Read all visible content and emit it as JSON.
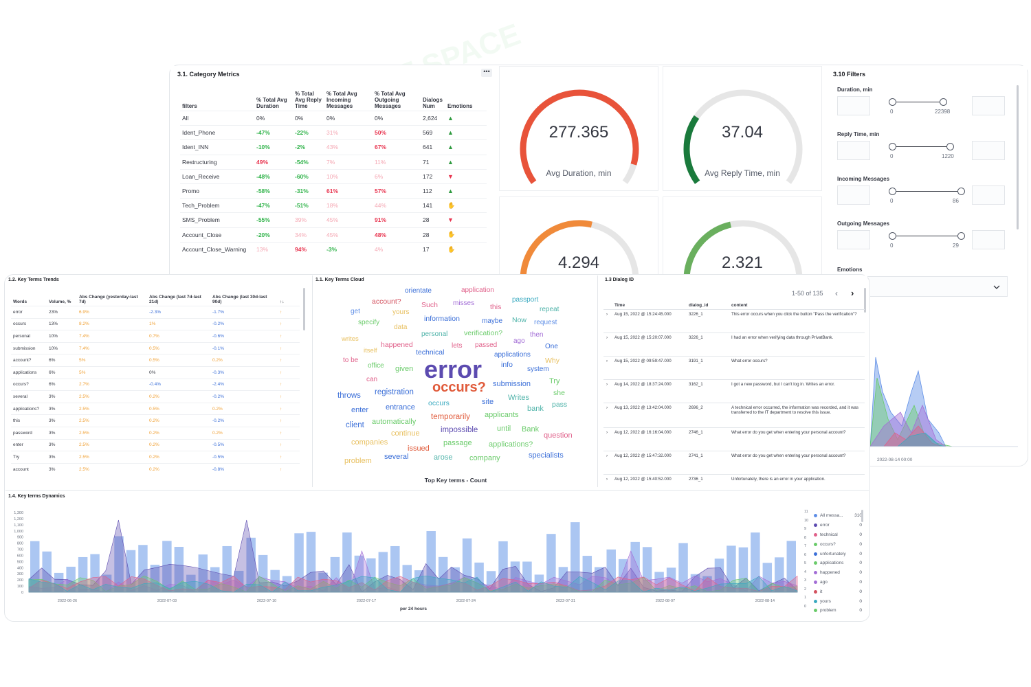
{
  "category_metrics": {
    "title": "3.1. Category Metrics",
    "menu_icon": "ellipsis-icon",
    "headers": [
      "filters",
      "% Total Avg Duration",
      "% Total Avg Reply Time",
      "% Total Avg Incoming Messages",
      "% Total Avg Outgoing Messages",
      "Dialogs Num",
      "Emotions"
    ],
    "rows": [
      {
        "f": "All",
        "d": "0%",
        "r": "0%",
        "i": "0%",
        "o": "0%",
        "n": "2,624",
        "e": "thumbs-up-icon"
      },
      {
        "f": "Ident_Phone",
        "d": "-47%",
        "r": "-22%",
        "i": "31%",
        "o": "50%",
        "n": "569",
        "e": "thumbs-up-icon"
      },
      {
        "f": "Ident_INN",
        "d": "-10%",
        "r": "-2%",
        "i": "43%",
        "o": "67%",
        "n": "641",
        "e": "thumbs-up-icon"
      },
      {
        "f": "Restructuring",
        "d": "49%",
        "r": "-54%",
        "i": "7%",
        "o": "11%",
        "n": "71",
        "e": "thumbs-up-icon"
      },
      {
        "f": "Loan_Receive",
        "d": "-48%",
        "r": "-60%",
        "i": "10%",
        "o": "6%",
        "n": "172",
        "e": "thumbs-down-icon"
      },
      {
        "f": "Promo",
        "d": "-58%",
        "r": "-31%",
        "i": "61%",
        "o": "57%",
        "n": "112",
        "e": "thumbs-up-icon"
      },
      {
        "f": "Tech_Problem",
        "d": "-47%",
        "r": "-51%",
        "i": "18%",
        "o": "44%",
        "n": "141",
        "e": "hand-icon"
      },
      {
        "f": "SMS_Problem",
        "d": "-55%",
        "r": "39%",
        "i": "45%",
        "o": "91%",
        "n": "28",
        "e": "thumbs-down-icon"
      },
      {
        "f": "Account_Close",
        "d": "-20%",
        "r": "34%",
        "i": "45%",
        "o": "48%",
        "n": "28",
        "e": "hand-icon"
      },
      {
        "f": "Account_Close_Warning",
        "d": "13%",
        "r": "94%",
        "i": "-3%",
        "o": "4%",
        "n": "17",
        "e": "hand-icon"
      }
    ]
  },
  "gauges": [
    {
      "value": "277.365",
      "label": "Avg Duration, min",
      "color": "#e8533a",
      "fill": 0.92
    },
    {
      "value": "37.04",
      "label": "Avg Reply Time, min",
      "color": "#1a7a3c",
      "fill": 0.28
    },
    {
      "value": "4.294",
      "label": "",
      "color": "#f08a3a",
      "fill": 0.55
    },
    {
      "value": "2.321",
      "label": "",
      "color": "#6aaf5e",
      "fill": 0.45
    }
  ],
  "filters": {
    "title": "3.10 Filters",
    "items": [
      {
        "label": "Duration, min",
        "min": "0",
        "max": "22398"
      },
      {
        "label": "Reply Time, min",
        "min": "0",
        "max": "1220"
      },
      {
        "label": "Incoming Messages",
        "min": "0",
        "max": "86"
      },
      {
        "label": "Outgoing Messages",
        "min": "0",
        "max": "29"
      }
    ],
    "emotions_label": "Emotions"
  },
  "key_terms_trends": {
    "title": "1.2. Key Terms Trends",
    "headers": [
      "Words",
      "Volume, %",
      "Abs Change (yesterday-last 7d)",
      "Abs Change (last 7d-last 21d)",
      "Abs Change (last 30d-last 90d)",
      "↑↓"
    ],
    "rows": [
      [
        "error",
        "23%",
        "6.9%",
        "-2.3%",
        "-1.7%"
      ],
      [
        "occurs",
        "13%",
        "8.2%",
        "1%",
        "-0.2%"
      ],
      [
        "personal",
        "10%",
        "7.4%",
        "0.7%",
        "-0.6%"
      ],
      [
        "submission",
        "10%",
        "7.4%",
        "0.5%",
        "-0.1%"
      ],
      [
        "account?",
        "6%",
        "5%",
        "0.5%",
        "0.2%"
      ],
      [
        "applications",
        "6%",
        "5%",
        "0%",
        "-0.3%"
      ],
      [
        "occurs?",
        "6%",
        "2.7%",
        "-0.4%",
        "-2.4%"
      ],
      [
        "several",
        "3%",
        "2.5%",
        "0.2%",
        "-0.2%"
      ],
      [
        "applications?",
        "3%",
        "2.5%",
        "0.5%",
        "0.2%"
      ],
      [
        "this",
        "3%",
        "2.5%",
        "0.2%",
        "-0.2%"
      ],
      [
        "password",
        "3%",
        "2.5%",
        "0.2%",
        "0.2%"
      ],
      [
        "enter",
        "3%",
        "2.5%",
        "0.2%",
        "-0.5%"
      ],
      [
        "Try",
        "3%",
        "2.5%",
        "0.2%",
        "-0.5%"
      ],
      [
        "account",
        "3%",
        "2.5%",
        "0.2%",
        "-0.8%"
      ]
    ]
  },
  "word_cloud": {
    "title": "1.1. Key Terms Cloud",
    "footer": "Top Key terms - Count",
    "words": [
      {
        "t": "orientate",
        "c": "#3b6fd8"
      },
      {
        "t": "application",
        "c": "#e0608a"
      },
      {
        "t": "account?",
        "c": "#d3525f"
      },
      {
        "t": "Such",
        "c": "#e0608a"
      },
      {
        "t": "misses",
        "c": "#a36ed6"
      },
      {
        "t": "this",
        "c": "#e0608a"
      },
      {
        "t": "passport",
        "c": "#3baac0"
      },
      {
        "t": "get",
        "c": "#5e8ee6"
      },
      {
        "t": "yours",
        "c": "#e8c060"
      },
      {
        "t": "repeat",
        "c": "#4fb3a9"
      },
      {
        "t": "specify",
        "c": "#6acb6a"
      },
      {
        "t": "data",
        "c": "#e8c060"
      },
      {
        "t": "information",
        "c": "#3b6fd8"
      },
      {
        "t": "maybe",
        "c": "#3b6fd8"
      },
      {
        "t": "Now",
        "c": "#4fb3a9"
      },
      {
        "t": "request",
        "c": "#5e8ee6"
      },
      {
        "t": "writes",
        "c": "#e8c060"
      },
      {
        "t": "personal",
        "c": "#4fb3a9"
      },
      {
        "t": "verification?",
        "c": "#6acb6a"
      },
      {
        "t": "then",
        "c": "#a36ed6"
      },
      {
        "t": "itself",
        "c": "#e8c060"
      },
      {
        "t": "happened",
        "c": "#e0608a"
      },
      {
        "t": "lets",
        "c": "#e0608a"
      },
      {
        "t": "passed",
        "c": "#e0608a"
      },
      {
        "t": "ago",
        "c": "#a36ed6"
      },
      {
        "t": "to be",
        "c": "#e0608a"
      },
      {
        "t": "technical",
        "c": "#3b6fd8"
      },
      {
        "t": "applications",
        "c": "#3b6fd8"
      },
      {
        "t": "One",
        "c": "#3b6fd8"
      },
      {
        "t": "office",
        "c": "#6acb6a"
      },
      {
        "t": "given",
        "c": "#6acb6a"
      },
      {
        "t": "error",
        "c": "#5c4bb0"
      },
      {
        "t": "info",
        "c": "#3b6fd8"
      },
      {
        "t": "Why",
        "c": "#e8c060"
      },
      {
        "t": "system",
        "c": "#3b6fd8"
      },
      {
        "t": "can",
        "c": "#e0608a"
      },
      {
        "t": "registration",
        "c": "#3b6fd8"
      },
      {
        "t": "occurs?",
        "c": "#e05a3a"
      },
      {
        "t": "submission",
        "c": "#3b6fd8"
      },
      {
        "t": "Try",
        "c": "#6acb6a"
      },
      {
        "t": "throws",
        "c": "#3b6fd8"
      },
      {
        "t": "occurs",
        "c": "#3baac0"
      },
      {
        "t": "Writes",
        "c": "#4fb3a9"
      },
      {
        "t": "she",
        "c": "#6acb6a"
      },
      {
        "t": "enter",
        "c": "#3b6fd8"
      },
      {
        "t": "entrance",
        "c": "#3b6fd8"
      },
      {
        "t": "site",
        "c": "#3b6fd8"
      },
      {
        "t": "bank",
        "c": "#4fb3a9"
      },
      {
        "t": "pass",
        "c": "#4fb3a9"
      },
      {
        "t": "temporarily",
        "c": "#e05a3a"
      },
      {
        "t": "applicants",
        "c": "#6acb6a"
      },
      {
        "t": "client",
        "c": "#3b6fd8"
      },
      {
        "t": "automatically",
        "c": "#6acb6a"
      },
      {
        "t": "impossible",
        "c": "#5c4bb0"
      },
      {
        "t": "until",
        "c": "#6acb6a"
      },
      {
        "t": "Bank",
        "c": "#6acb6a"
      },
      {
        "t": "continue",
        "c": "#e8c060"
      },
      {
        "t": "question",
        "c": "#e0608a"
      },
      {
        "t": "companies",
        "c": "#e8c060"
      },
      {
        "t": "passage",
        "c": "#6acb6a"
      },
      {
        "t": "applications?",
        "c": "#6acb6a"
      },
      {
        "t": "issued",
        "c": "#e05a3a"
      },
      {
        "t": "problem",
        "c": "#e8c060"
      },
      {
        "t": "several",
        "c": "#3b6fd8"
      },
      {
        "t": "arose",
        "c": "#4fb3a9"
      },
      {
        "t": "company",
        "c": "#6acb6a"
      },
      {
        "t": "specialists",
        "c": "#3b6fd8"
      }
    ]
  },
  "dialog": {
    "title": "1.3 Dialog ID",
    "pagination": "1-50 of 135",
    "headers": [
      "Time",
      "dialog_id",
      "content"
    ],
    "rows": [
      [
        "Aug 15, 2022 @ 15:24:45.000",
        "3226_1",
        "This error occurs when you click the button \"Pass the verification\"?"
      ],
      [
        "Aug 15, 2022 @ 15:20:07.000",
        "3226_1",
        "I had an error when verifying data through PrivatBank."
      ],
      [
        "Aug 15, 2022 @ 09:59:47.000",
        "3191_1",
        "What error occurs?"
      ],
      [
        "Aug 14, 2022 @ 18:37:24.000",
        "3162_1",
        "I got a new password, but I can't log in. Writes an error."
      ],
      [
        "Aug 13, 2022 @ 13:42:04.000",
        "2696_2",
        "A technical error occurred, the information was recorded, and it was transferred to the IT department to resolve this issue."
      ],
      [
        "Aug 12, 2022 @ 16:16:04.000",
        "2746_1",
        "What error do you get when entering your personal account?"
      ],
      [
        "Aug 12, 2022 @ 15:47:32.000",
        "2741_1",
        "What error do you get when entering your personal account?"
      ],
      [
        "Aug 12, 2022 @ 15:40:52.000",
        "2736_1",
        "Unfortunately, there is an error in your application."
      ]
    ]
  },
  "side_chart": {
    "xlabel": "2022-08-14 00:00"
  },
  "dynamics": {
    "title": "1.4. Key terms Dynamics",
    "xlabel": "per 24 hours",
    "yticks": [
      "1,300",
      "1,200",
      "1,100",
      "1,000",
      "900",
      "800",
      "700",
      "600",
      "500",
      "400",
      "300",
      "200",
      "100",
      "0"
    ],
    "xticks": [
      "2022-06-26",
      "2022-07-03",
      "2022-07-10",
      "2022-07-17",
      "2022-07-24",
      "2022-07-31",
      "2022-08-07",
      "2022-08-14"
    ],
    "legend": [
      {
        "name": "All messa...",
        "value": "310",
        "color": "#5e8ee6"
      },
      {
        "name": "error",
        "value": "0",
        "color": "#5c4bb0"
      },
      {
        "name": "technical",
        "value": "0",
        "color": "#e0608a"
      },
      {
        "name": "occurs?",
        "value": "0",
        "color": "#6acb6a"
      },
      {
        "name": "unfortunately",
        "value": "0",
        "color": "#3b6fd8"
      },
      {
        "name": "applications",
        "value": "0",
        "color": "#6acb6a"
      },
      {
        "name": "happened",
        "value": "0",
        "color": "#a36ed6"
      },
      {
        "name": "ago",
        "value": "0",
        "color": "#a36ed6"
      },
      {
        "name": "it",
        "value": "0",
        "color": "#d3525f"
      },
      {
        "name": "yours",
        "value": "0",
        "color": "#3baac0"
      },
      {
        "name": "problem",
        "value": "0",
        "color": "#6acb6a"
      }
    ],
    "legend_ticks": [
      "11",
      "10",
      "9",
      "8",
      "7",
      "6",
      "5",
      "4",
      "3",
      "2",
      "1",
      "0"
    ]
  },
  "watermark": [
    "AI TALENT SPACE",
    "AI TALENT SPACE",
    "AI TALENT SPACE"
  ]
}
